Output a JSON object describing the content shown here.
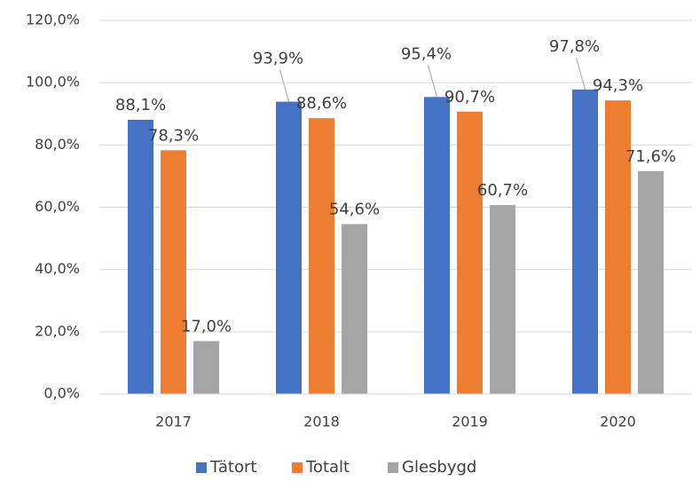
{
  "chart_data": {
    "type": "bar",
    "categories": [
      "2017",
      "2018",
      "2019",
      "2020"
    ],
    "series": [
      {
        "name": "Tätort",
        "color": "#4472c4",
        "values": [
          88.1,
          93.9,
          95.4,
          97.8
        ],
        "value_labels": [
          "88,1%",
          "93,9%",
          "95,4%",
          "97,8%"
        ]
      },
      {
        "name": "Totalt",
        "color": "#ed7d31",
        "values": [
          78.3,
          88.6,
          90.7,
          94.3
        ],
        "value_labels": [
          "78,3%",
          "88,6%",
          "90,7%",
          "94,3%"
        ]
      },
      {
        "name": "Glesbygd",
        "color": "#a5a5a5",
        "values": [
          17.0,
          54.6,
          60.7,
          71.6
        ],
        "value_labels": [
          "17,0%",
          "54,6%",
          "60,7%",
          "71,6%"
        ]
      }
    ],
    "ylim": [
      0,
      120
    ],
    "yticks": [
      {
        "value": 0,
        "label": "0,0%"
      },
      {
        "value": 20,
        "label": "20,0%"
      },
      {
        "value": 40,
        "label": "40,0%"
      },
      {
        "value": 60,
        "label": "60,0%"
      },
      {
        "value": 80,
        "label": "80,0%"
      },
      {
        "value": 100,
        "label": "100,0%"
      },
      {
        "value": 120,
        "label": "120,0%"
      }
    ],
    "grid": true,
    "legend": "bottom"
  }
}
